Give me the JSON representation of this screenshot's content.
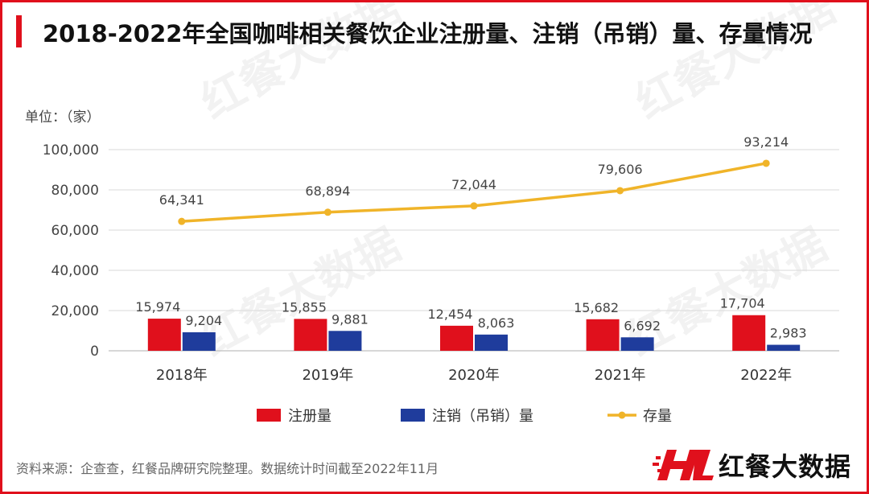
{
  "page": {
    "title": "2018-2022年全国咖啡相关餐饮企业注册量、注销（吊销）量、存量情况",
    "unit": "单位：（家）",
    "source": "资料来源：企查查，红餐品牌研究院整理。数据统计时间截至2022年11月",
    "brand": "红餐大数据",
    "watermark": "红餐大数据"
  },
  "colors": {
    "accent": "#e0101c",
    "registered": "#e0101c",
    "cancelled": "#1f3c9c",
    "stock": "#f0b429"
  },
  "chart_data": {
    "type": "bar",
    "categories": [
      "2018年",
      "2019年",
      "2020年",
      "2021年",
      "2022年"
    ],
    "series": [
      {
        "name": "注册量",
        "kind": "bar",
        "values": [
          15974,
          15855,
          12454,
          15682,
          17704
        ]
      },
      {
        "name": "注销（吊销）量",
        "kind": "bar",
        "values": [
          9204,
          9881,
          8063,
          6692,
          2983
        ]
      },
      {
        "name": "存量",
        "kind": "line",
        "values": [
          64341,
          68894,
          72044,
          79606,
          93214
        ]
      }
    ],
    "ylim": [
      0,
      100000
    ],
    "yticks": [
      0,
      20000,
      40000,
      60000,
      80000,
      100000
    ],
    "ytick_labels": [
      "0",
      "20,000",
      "40,000",
      "60,000",
      "80,000",
      "100,000"
    ],
    "data_labels": {
      "注册量": [
        "15,974",
        "15,855",
        "12,454",
        "15,682",
        "17,704"
      ],
      "注销（吊销）量": [
        "9,204",
        "9,881",
        "8,063",
        "6,692",
        "2,983"
      ],
      "存量": [
        "64,341",
        "68,894",
        "72,044",
        "79,606",
        "93,214"
      ]
    },
    "grid": true,
    "legend_position": "bottom",
    "ylabel": "单位：（家）"
  }
}
